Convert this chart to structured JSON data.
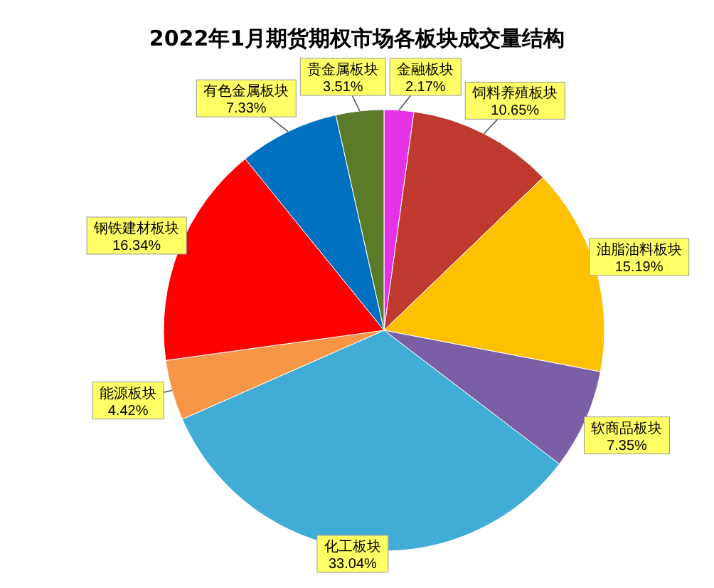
{
  "chart_data": {
    "type": "pie",
    "title": "2022年1月期货期权市场各板块成交量结构",
    "categories": [
      "金融板块",
      "饲料养殖板块",
      "油脂油料板块",
      "软商品板块",
      "化工板块",
      "能源板块",
      "钢铁建材板块",
      "有色金属板块",
      "贵金属板块"
    ],
    "values": [
      2.17,
      10.65,
      15.19,
      7.35,
      33.04,
      4.42,
      16.34,
      7.33,
      3.51
    ],
    "colors": [
      "#e632e6",
      "#c0392f",
      "#ffc000",
      "#7b5fa6",
      "#41acd6",
      "#f79646",
      "#ff0000",
      "#0070c0",
      "#5b7a2a"
    ],
    "value_labels": [
      "2.17%",
      "10.65%",
      "15.19%",
      "7.35%",
      "33.04%",
      "4.42%",
      "16.34%",
      "7.33%",
      "3.51%"
    ]
  }
}
